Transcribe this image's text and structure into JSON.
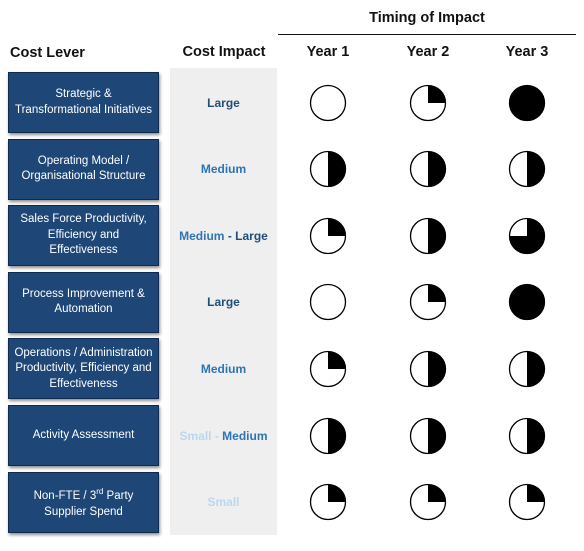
{
  "header": {
    "timing_title": "Timing of Impact",
    "cost_lever": "Cost Lever",
    "cost_impact": "Cost Impact",
    "years": [
      "Year 1",
      "Year 2",
      "Year 3"
    ]
  },
  "colors": {
    "lever_box": "#1e4676",
    "impact_dark": "#1f4e79",
    "impact_mid": "#2e74b5",
    "impact_light": "#bdd7ee",
    "ball_fill": "#000000"
  },
  "rows": [
    {
      "lever": "Strategic  & Transformational Initiatives",
      "impact": [
        {
          "text": "Large",
          "tone": "dark"
        }
      ],
      "timing": [
        0,
        0.25,
        1
      ]
    },
    {
      "lever": "Operating Model / Organisational Structure",
      "impact": [
        {
          "text": "Medium",
          "tone": "mid"
        }
      ],
      "timing": [
        0.5,
        0.5,
        0.5
      ]
    },
    {
      "lever": "Sales Force Productivity, Efficiency and Effectiveness",
      "impact": [
        {
          "text": "Medium",
          "tone": "mid"
        },
        {
          "text": " - ",
          "tone": "dark"
        },
        {
          "text": "Large",
          "tone": "dark"
        }
      ],
      "timing": [
        0.25,
        0.5,
        0.75
      ]
    },
    {
      "lever": "Process Improvement & Automation",
      "impact": [
        {
          "text": "Large",
          "tone": "dark"
        }
      ],
      "timing": [
        0,
        0.25,
        1
      ]
    },
    {
      "lever": "Operations / Administration Productivity, Efficiency and Effectiveness",
      "impact": [
        {
          "text": "Medium",
          "tone": "mid"
        }
      ],
      "timing": [
        0.25,
        0.5,
        0.5
      ]
    },
    {
      "lever": "Activity Assessment",
      "impact": [
        {
          "text": "Small",
          "tone": "light"
        },
        {
          "text": " - ",
          "tone": "light"
        },
        {
          "text": "Medium",
          "tone": "mid"
        }
      ],
      "timing": [
        0.5,
        0.5,
        0.5
      ]
    },
    {
      "lever": "Non-FTE / 3rd Party Supplier Spend",
      "impact": [
        {
          "text": "Small",
          "tone": "light"
        }
      ],
      "timing": [
        0.25,
        0.25,
        0.25
      ]
    }
  ]
}
